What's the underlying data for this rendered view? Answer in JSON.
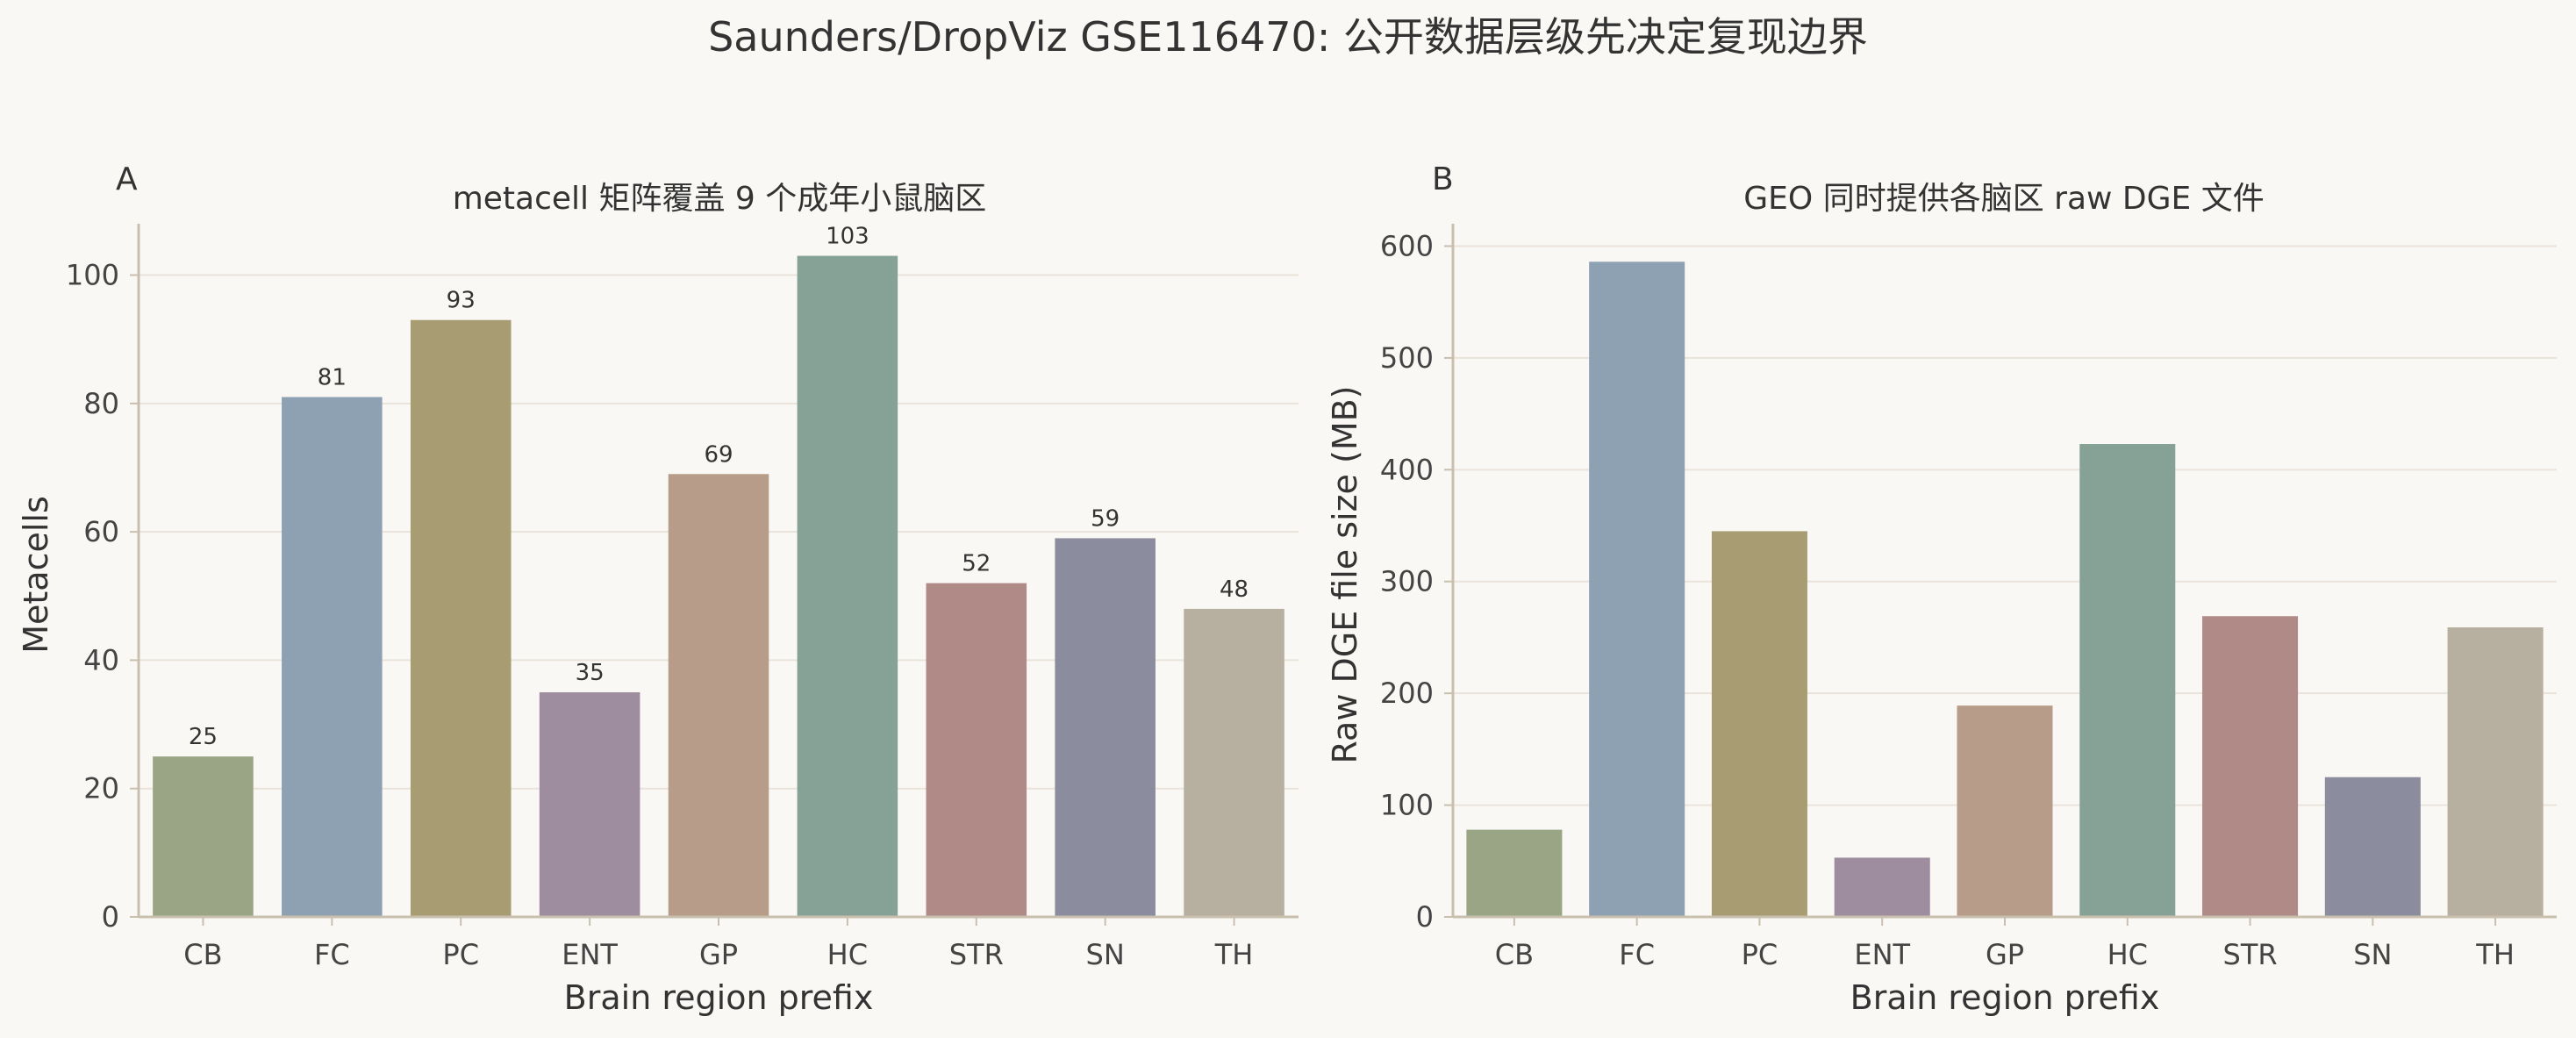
{
  "figure": {
    "suptitle": "Saunders/DropViz GSE116470: 公开数据层级先决定复现边界"
  },
  "chart_data": [
    {
      "panel": "A",
      "type": "bar",
      "title": "metacell 矩阵覆盖 9 个成年小鼠脑区",
      "xlabel": "Brain region prefix",
      "ylabel": "Metacells",
      "categories": [
        "CB",
        "FC",
        "PC",
        "ENT",
        "GP",
        "HC",
        "STR",
        "SN",
        "TH"
      ],
      "values": [
        25,
        81,
        93,
        35,
        69,
        103,
        52,
        59,
        48
      ],
      "data_labels": [
        "25",
        "81",
        "93",
        "35",
        "69",
        "103",
        "52",
        "59",
        "48"
      ],
      "ylim": [
        0,
        108
      ],
      "yticks": [
        0,
        20,
        40,
        60,
        80,
        100
      ],
      "grid": "horizontal",
      "colors": [
        "#9aa585",
        "#8ea1b3",
        "#a89c72",
        "#9e8d9e",
        "#b89c8a",
        "#86a296",
        "#b08a87",
        "#8b8d9e",
        "#b7afa0"
      ]
    },
    {
      "panel": "B",
      "type": "bar",
      "title": "GEO 同时提供各脑区 raw DGE 文件",
      "xlabel": "Brain region prefix",
      "ylabel": "Raw DGE file size (MB)",
      "categories": [
        "CB",
        "FC",
        "PC",
        "ENT",
        "GP",
        "HC",
        "STR",
        "SN",
        "TH"
      ],
      "values": [
        78,
        586,
        345,
        53,
        189,
        423,
        269,
        125,
        259
      ],
      "ylim": [
        0,
        620
      ],
      "yticks": [
        0,
        100,
        200,
        300,
        400,
        500,
        600
      ],
      "grid": "horizontal",
      "colors": [
        "#9aa585",
        "#8ea1b3",
        "#a89c72",
        "#9e8d9e",
        "#b89c8a",
        "#86a296",
        "#b08a87",
        "#8b8d9e",
        "#b7afa0"
      ]
    }
  ]
}
